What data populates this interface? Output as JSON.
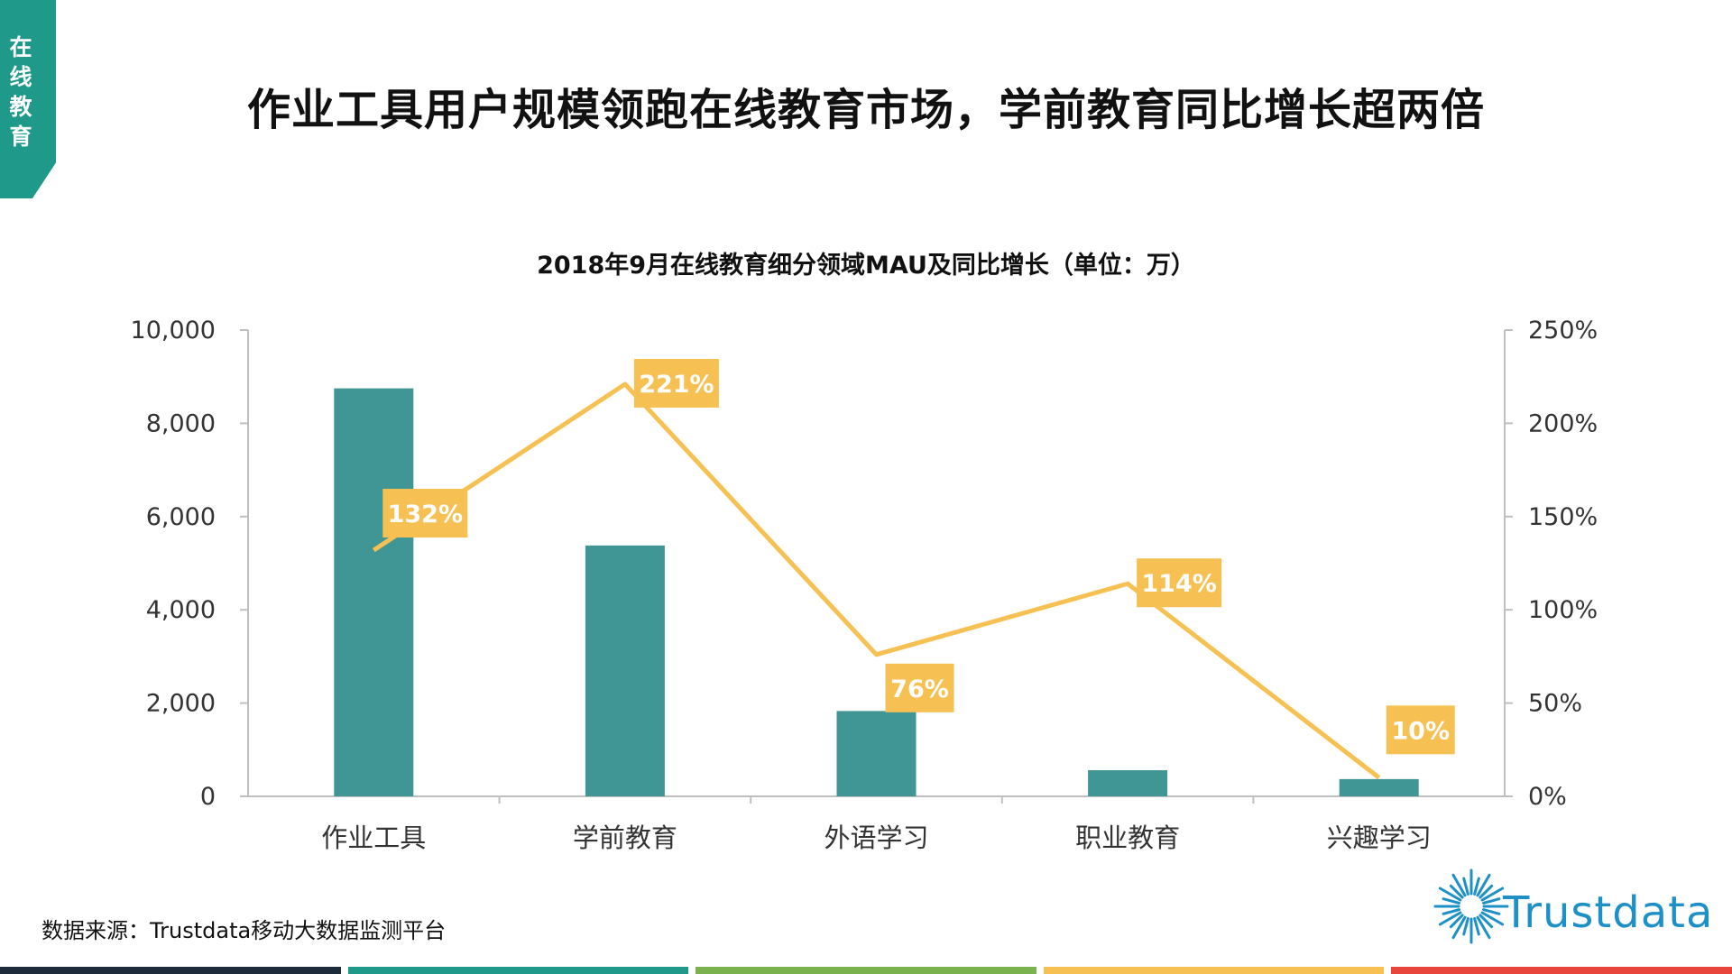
{
  "header": {
    "corner_tab": "在线教育",
    "page_title": "作业工具用户规模领跑在线教育市场，学前教育同比增长超两倍"
  },
  "chart_data": {
    "type": "bar",
    "title": "2018年9月在线教育细分领域MAU及同比增长（单位：万）",
    "categories": [
      "作业工具",
      "学前教育",
      "外语学习",
      "职业教育",
      "兴趣学习"
    ],
    "series": [
      {
        "type": "bar",
        "axis": "left",
        "color": "#3f9694",
        "values": [
          8750,
          5380,
          1830,
          560,
          370
        ]
      },
      {
        "type": "line",
        "axis": "right",
        "color": "#f6c152",
        "values": [
          132,
          221,
          76,
          114,
          10
        ],
        "labels": [
          "132%",
          "221%",
          "76%",
          "114%",
          "10%"
        ]
      }
    ],
    "y_left": {
      "range": [
        0,
        10000
      ],
      "ticks": [
        0,
        2000,
        4000,
        6000,
        8000,
        10000
      ],
      "tick_labels": [
        "0",
        "2,000",
        "4,000",
        "6,000",
        "8,000",
        "10,000"
      ]
    },
    "y_right": {
      "range": [
        0,
        250
      ],
      "ticks": [
        0,
        50,
        100,
        150,
        200,
        250
      ],
      "tick_labels": [
        "0%",
        "50%",
        "100%",
        "150%",
        "200%",
        "250%"
      ]
    },
    "grid": false,
    "legend": "none"
  },
  "footer": {
    "source_note": "数据来源：Trustdata移动大数据监测平台",
    "logo_text": "Trustdata"
  },
  "colors": {
    "accent": "#1f9a8a",
    "bar": "#3f9694",
    "line": "#f6c152",
    "logo": "#1e90c8",
    "stripes": [
      "#1d2b3a",
      "#1f9a8a",
      "#7ab24e",
      "#f6c152",
      "#e8463c"
    ]
  }
}
